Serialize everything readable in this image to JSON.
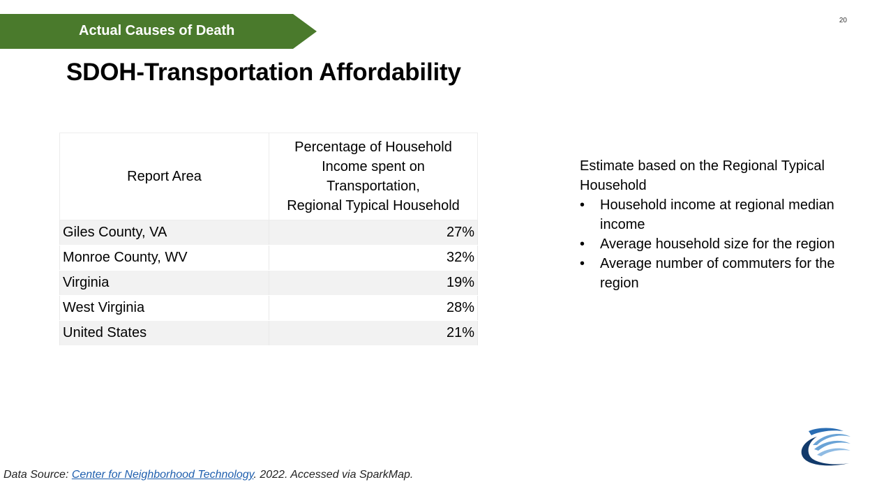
{
  "banner": {
    "label": "Actual Causes of Death"
  },
  "page_number": "20",
  "title": "SDOH-Transportation Affordability",
  "table": {
    "header_area": "Report Area",
    "header_pct_lines": [
      "Percentage of Household",
      "Income spent on",
      "Transportation,",
      "Regional Typical Household"
    ],
    "rows": [
      {
        "area": "Giles County, VA",
        "value": "27%"
      },
      {
        "area": "Monroe County, WV",
        "value": "32%"
      },
      {
        "area": "Virginia",
        "value": "19%"
      },
      {
        "area": "West Virginia",
        "value": "28%"
      },
      {
        "area": "United States",
        "value": "21%"
      }
    ]
  },
  "note": {
    "intro": "Estimate based on the Regional Typical Household",
    "bullets": [
      "Household income at regional median income",
      "Average household size for the region",
      "Average number of commuters for the region"
    ]
  },
  "source": {
    "prefix": "Data Source: ",
    "link_text": "Center for Neighborhood Technology",
    "suffix": ". 2022. Accessed via SparkMap."
  },
  "colors": {
    "banner": "#4a7a2c",
    "link": "#1f5fae",
    "logo_dark": "#123a6b",
    "logo_light": "#6aa3d6"
  },
  "icons": {
    "logo": "swoosh-logo-icon"
  }
}
